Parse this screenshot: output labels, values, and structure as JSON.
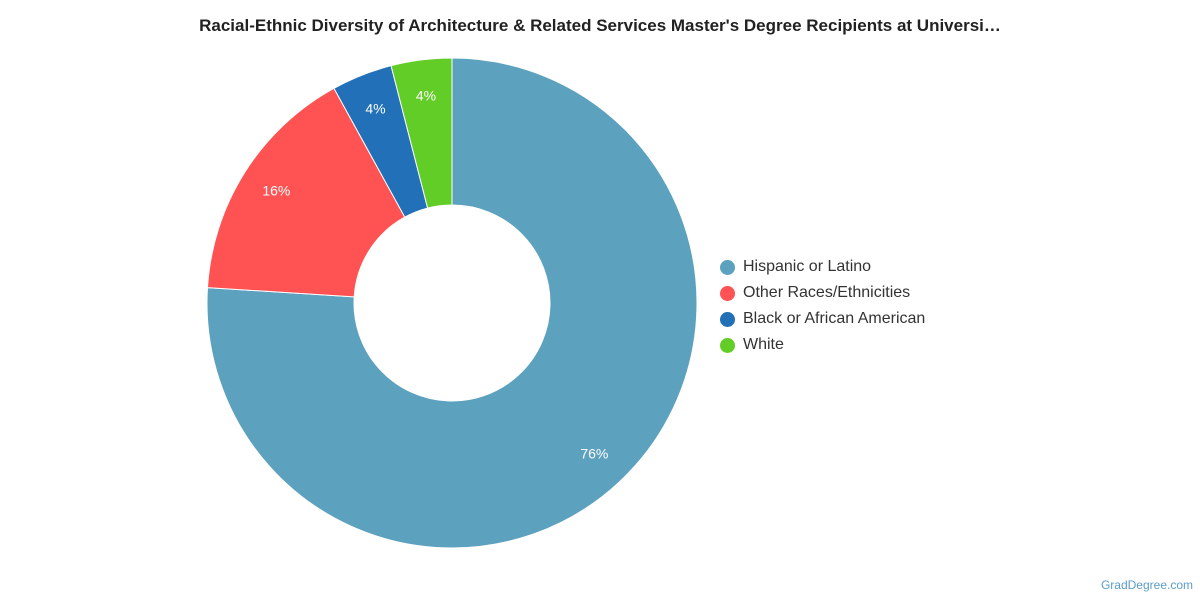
{
  "chart_data": {
    "type": "pie",
    "title": "Racial-Ethnic Diversity of Architecture & Related Services Master's Degree Recipients at Universi…",
    "categories": [
      "Hispanic or Latino",
      "Other Races/Ethnicities",
      "Black or African American",
      "White"
    ],
    "values": [
      76,
      16,
      4,
      4
    ],
    "data_labels": [
      "76%",
      "16%",
      "4%",
      "4%"
    ],
    "colors": [
      "#5ca1be",
      "#ff5252",
      "#2170b8",
      "#62cd26"
    ],
    "donut": true,
    "legend_position": "right"
  },
  "legend": {
    "items": [
      {
        "label": "Hispanic or Latino",
        "color": "#5ca1be"
      },
      {
        "label": "Other Races/Ethnicities",
        "color": "#ff5252"
      },
      {
        "label": "Black or African American",
        "color": "#2170b8"
      },
      {
        "label": "White",
        "color": "#62cd26"
      }
    ]
  },
  "credit": "GradDegree.com"
}
